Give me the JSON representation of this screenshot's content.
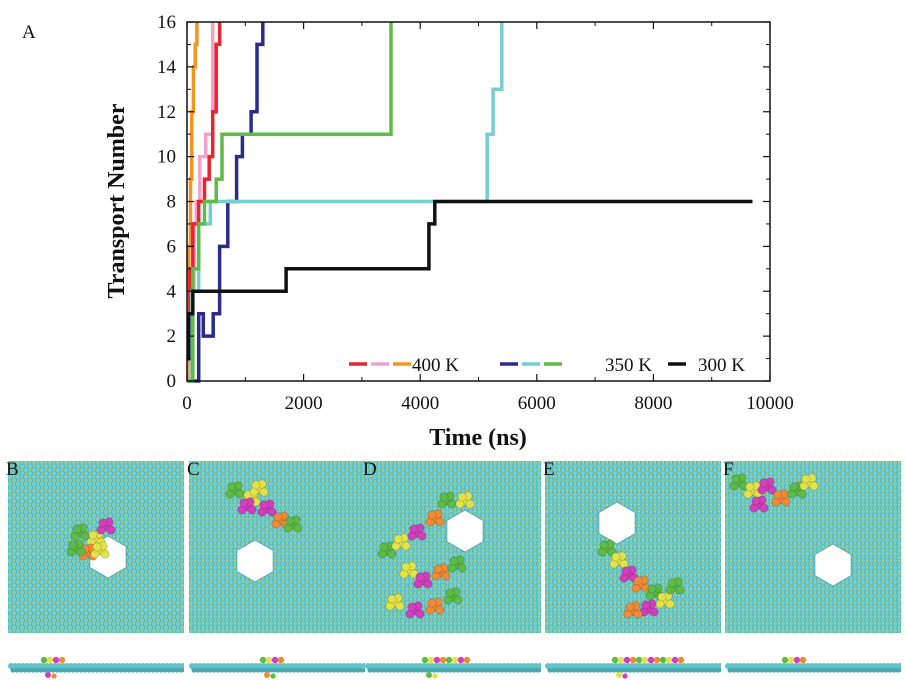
{
  "chart_data": {
    "type": "line",
    "panel_label": "A",
    "xlabel": "Time (ns)",
    "ylabel": "Transport Number",
    "xlim": [
      0,
      10000
    ],
    "ylim": [
      0,
      16
    ],
    "x_ticks": [
      "0",
      "2000",
      "4000",
      "6000",
      "8000",
      "10000"
    ],
    "y_ticks": [
      "0",
      "2",
      "4",
      "6",
      "8",
      "10",
      "12",
      "14",
      "16"
    ],
    "legend_groups": [
      {
        "label": "400 K",
        "colors": [
          "#e8242e",
          "#f2a0cc",
          "#f7931e"
        ]
      },
      {
        "label": "350 K",
        "colors": [
          "#2b2b8e",
          "#74cfd2",
          "#5dbb46"
        ]
      },
      {
        "label": "300 K",
        "colors": [
          "#111111"
        ]
      }
    ],
    "series": [
      {
        "color": "#f7931e",
        "x": [
          0,
          30,
          60,
          80,
          110,
          140,
          170
        ],
        "y": [
          0,
          6,
          9,
          12,
          14,
          15,
          16
        ]
      },
      {
        "color": "#f2a0cc",
        "x": [
          0,
          60,
          120,
          160,
          220,
          260,
          320,
          400,
          440
        ],
        "y": [
          0,
          4,
          7,
          8,
          10,
          10,
          11,
          11,
          16
        ]
      },
      {
        "color": "#e8242e",
        "x": [
          0,
          50,
          100,
          200,
          300,
          380,
          440,
          500,
          560
        ],
        "y": [
          1,
          5,
          7,
          8,
          9,
          10,
          12,
          15,
          16
        ]
      },
      {
        "color": "#2b2b8e",
        "x": [
          0,
          200,
          280,
          350,
          450,
          560,
          700,
          850,
          950,
          1100,
          1200,
          1300
        ],
        "y": [
          0,
          3,
          2,
          2,
          3,
          6,
          8,
          10,
          11,
          12,
          15,
          16
        ]
      },
      {
        "color": "#74cfd2",
        "x": [
          0,
          80,
          200,
          400,
          800,
          1500,
          3000,
          4300,
          5000,
          5150,
          5250,
          5400
        ],
        "y": [
          0,
          4,
          7,
          8,
          8,
          8,
          8,
          8,
          8,
          11,
          13,
          16
        ]
      },
      {
        "color": "#5dbb46",
        "x": [
          0,
          100,
          200,
          300,
          500,
          600,
          1000,
          2000,
          3000,
          3450,
          3500
        ],
        "y": [
          0,
          5,
          7,
          8,
          9,
          11,
          11,
          11,
          11,
          11,
          16
        ]
      },
      {
        "color": "#111111",
        "x": [
          0,
          30,
          100,
          600,
          1200,
          1600,
          1700,
          2500,
          3500,
          4000,
          4150,
          4250,
          5000,
          7000,
          9700
        ],
        "y": [
          1,
          3,
          4,
          4,
          4,
          4,
          5,
          5,
          5,
          5,
          7,
          8,
          8,
          8,
          8
        ]
      }
    ],
    "legend_position": "bottom-right",
    "grid": false
  },
  "snapshots": [
    {
      "label": "B"
    },
    {
      "label": "C"
    },
    {
      "label": "D"
    },
    {
      "label": "E"
    },
    {
      "label": "F"
    }
  ]
}
